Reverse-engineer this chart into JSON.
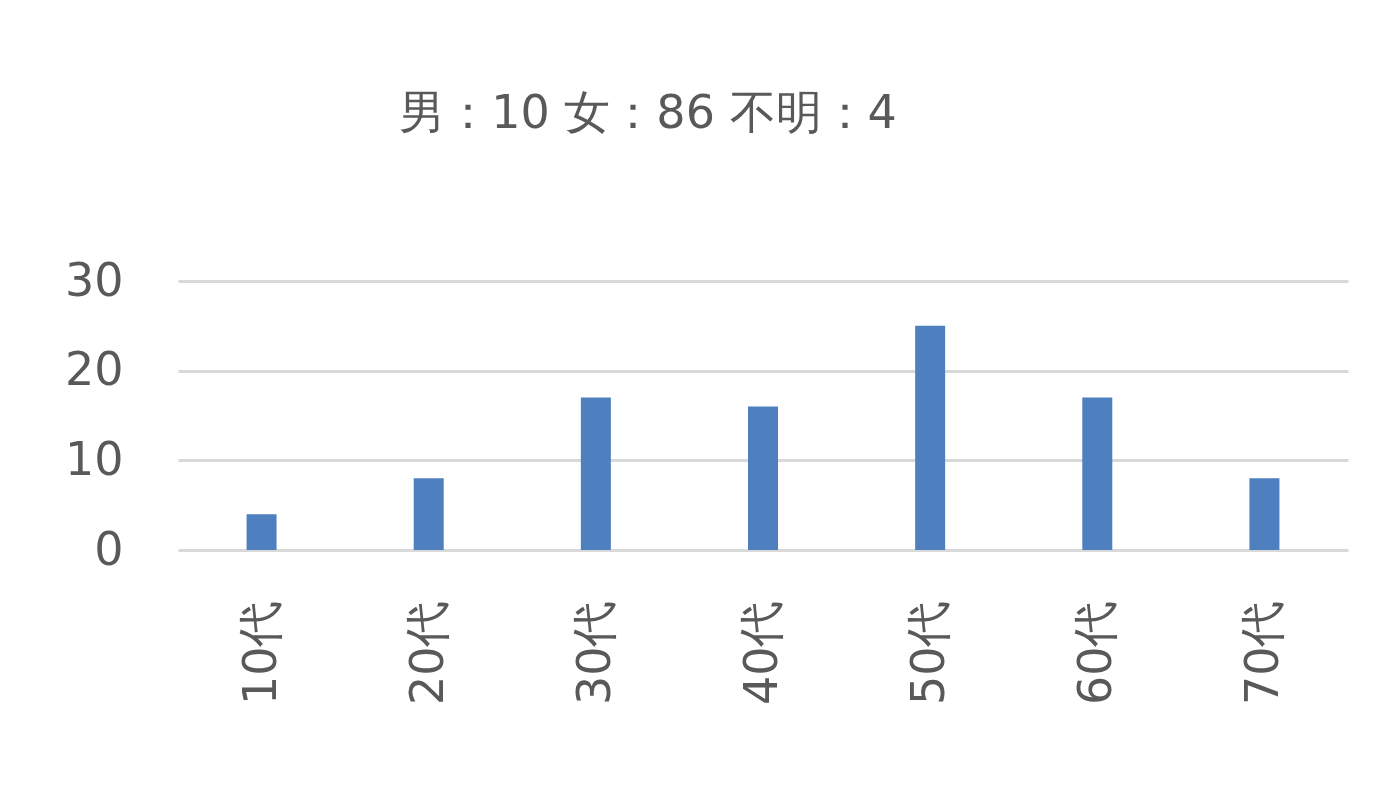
{
  "chart_data": {
    "type": "bar",
    "title": "男：10 女：86 不明：4",
    "categories": [
      "10代",
      "20代",
      "30代",
      "40代",
      "50代",
      "60代",
      "70代"
    ],
    "values": [
      4,
      8,
      17,
      16,
      25,
      17,
      8
    ],
    "color": "#4e7fbf",
    "ylim": [
      0,
      30
    ],
    "yticks": [
      0,
      10,
      20,
      30
    ],
    "grid": "y"
  }
}
